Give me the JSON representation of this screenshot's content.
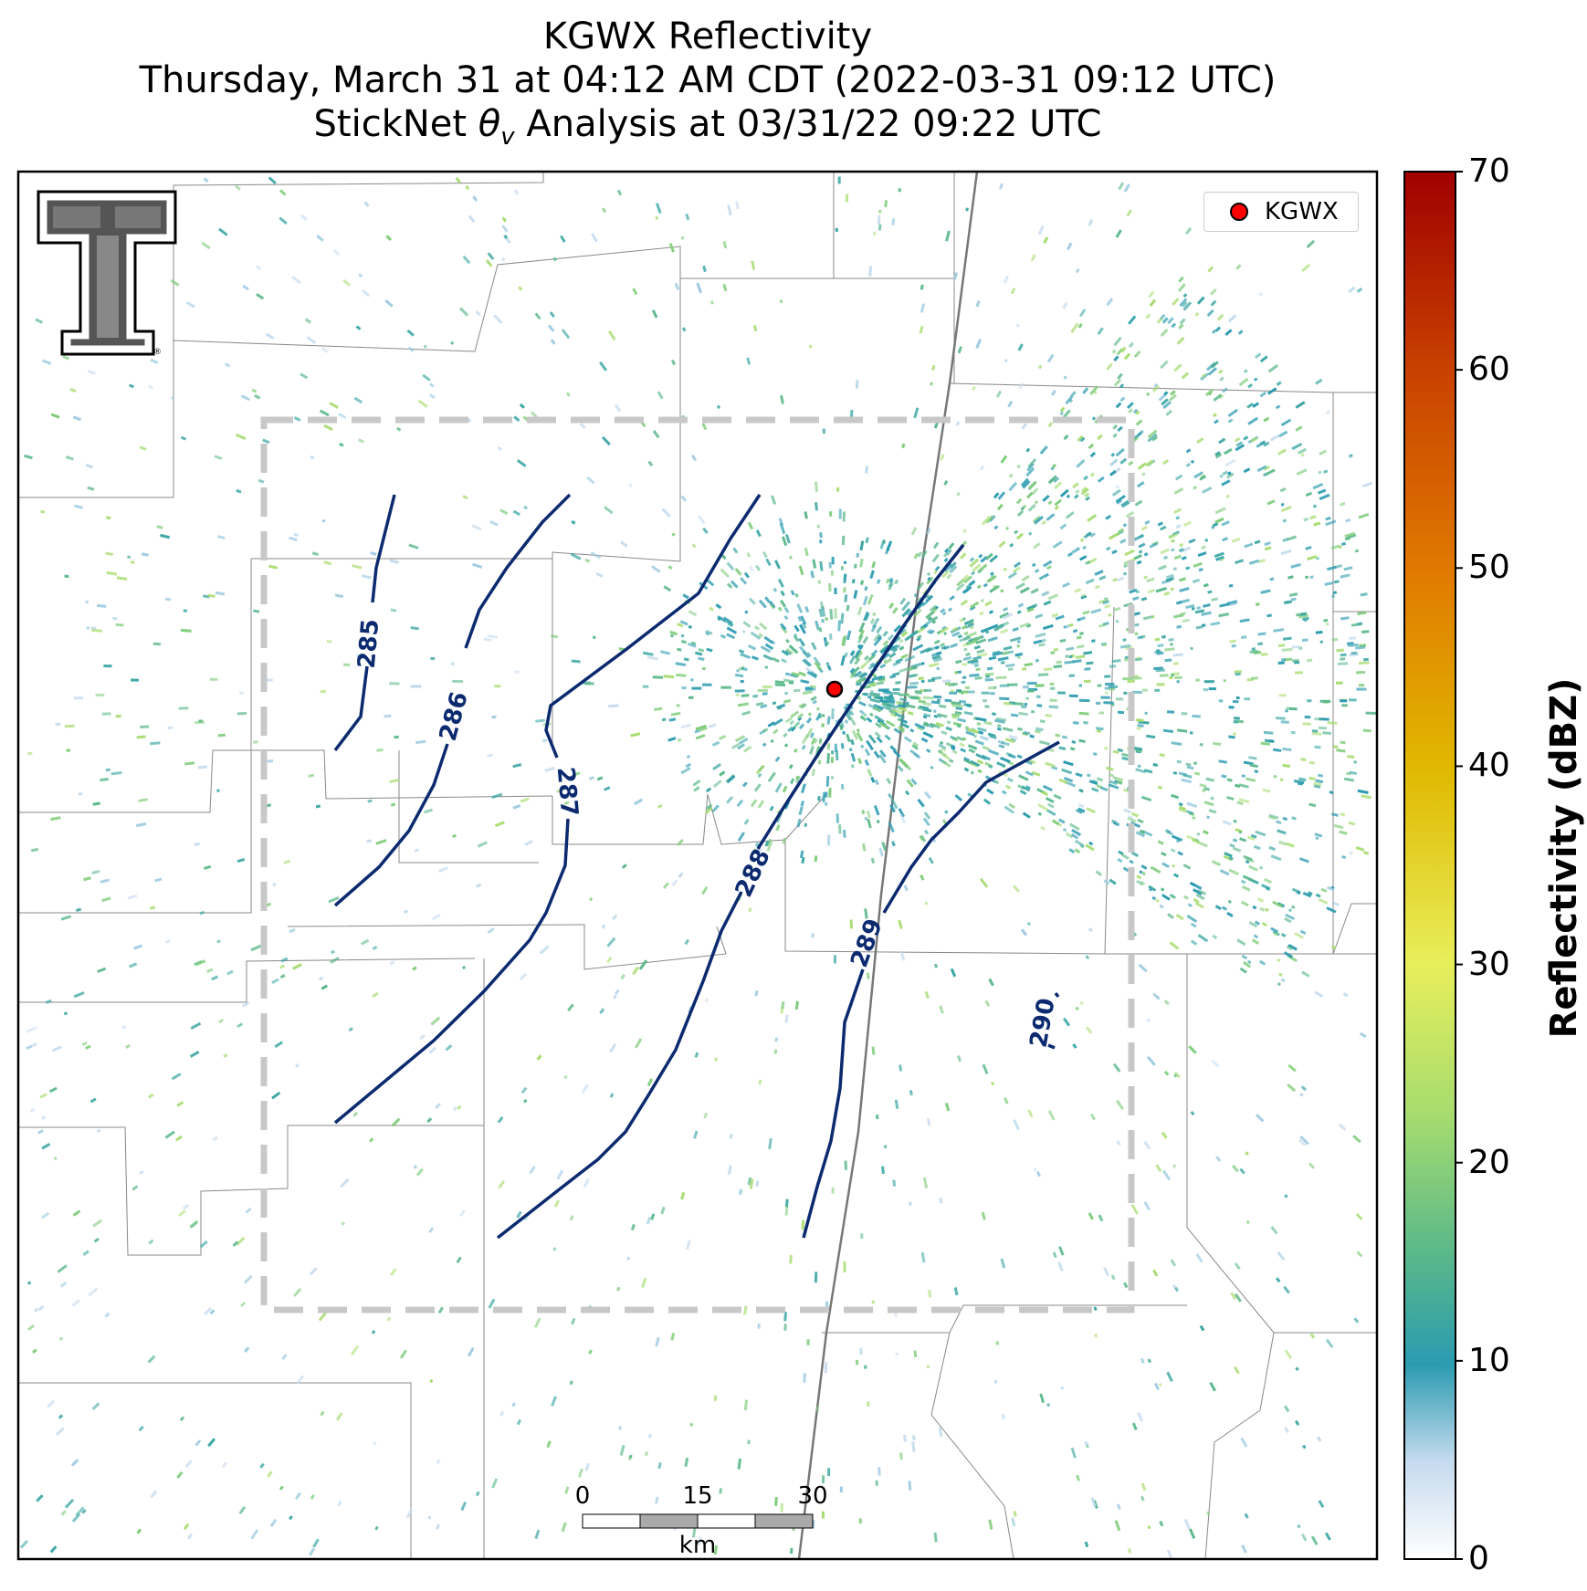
{
  "title": {
    "line1": "KGWX Reflectivity",
    "line2": "Thursday, March 31 at 04:12 AM CDT (2022-03-31 09:12 UTC)",
    "line3": "StickNet θv Analysis at 03/31/22 09:22 UTC"
  },
  "legend": {
    "label": "KGWX",
    "marker_color": "#ff0000"
  },
  "colorbar": {
    "title": "Reflectivity (dBZ)",
    "ticks": [
      "0",
      "10",
      "20",
      "30",
      "40",
      "50",
      "60",
      "70"
    ],
    "colors": [
      "#ffffff",
      "#c6dbef",
      "#2b9bb0",
      "#5ab88a",
      "#a6dc6f",
      "#e8ee5a",
      "#e0b800",
      "#e07a00",
      "#c84000",
      "#a00000"
    ]
  },
  "contours": {
    "color": "#0b2a6f",
    "levels": [
      "285",
      "286",
      "287",
      "288",
      "289",
      "290"
    ]
  },
  "scalebar": {
    "ticks": [
      "0",
      "15",
      "30"
    ],
    "unit": "km"
  },
  "logo": {
    "name": "Texas Tech double-T logo"
  }
}
